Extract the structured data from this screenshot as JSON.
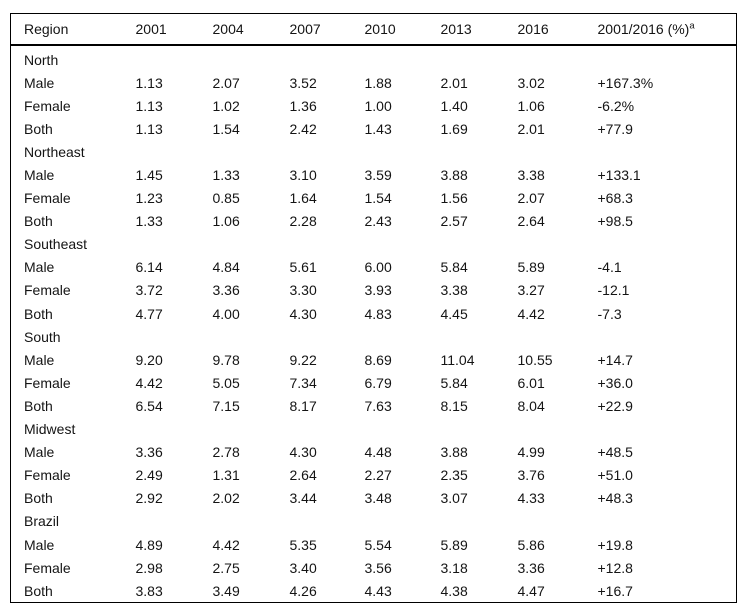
{
  "colors": {
    "background": "#ffffff",
    "border": "#000000",
    "text": "#141414"
  },
  "table": {
    "columns": [
      "Region",
      "2001",
      "2004",
      "2007",
      "2010",
      "2013",
      "2016",
      "2001/2016 (%)"
    ],
    "footnote_marker": "a",
    "rows": [
      {
        "kind": "group",
        "cells": [
          "North",
          "",
          "",
          "",
          "",
          "",
          "",
          ""
        ]
      },
      {
        "kind": "data",
        "cells": [
          "Male",
          "1.13",
          "2.07",
          "3.52",
          "1.88",
          "2.01",
          "3.02",
          "+167.3%"
        ]
      },
      {
        "kind": "data",
        "cells": [
          "Female",
          "1.13",
          "1.02",
          "1.36",
          "1.00",
          "1.40",
          "1.06",
          "-6.2%"
        ]
      },
      {
        "kind": "data",
        "cells": [
          "Both",
          "1.13",
          "1.54",
          "2.42",
          "1.43",
          "1.69",
          "2.01",
          "+77.9"
        ]
      },
      {
        "kind": "group",
        "cells": [
          "Northeast",
          "",
          "",
          "",
          "",
          "",
          "",
          ""
        ]
      },
      {
        "kind": "data",
        "cells": [
          "Male",
          "1.45",
          "1.33",
          "3.10",
          "3.59",
          "3.88",
          "3.38",
          "+133.1"
        ]
      },
      {
        "kind": "data",
        "cells": [
          "Female",
          "1.23",
          "0.85",
          "1.64",
          "1.54",
          "1.56",
          "2.07",
          "+68.3"
        ]
      },
      {
        "kind": "data",
        "cells": [
          "Both",
          "1.33",
          "1.06",
          "2.28",
          "2.43",
          "2.57",
          "2.64",
          "+98.5"
        ]
      },
      {
        "kind": "group",
        "cells": [
          "Southeast",
          "",
          "",
          "",
          "",
          "",
          "",
          ""
        ]
      },
      {
        "kind": "data",
        "cells": [
          "Male",
          "6.14",
          "4.84",
          "5.61",
          "6.00",
          "5.84",
          "5.89",
          "-4.1"
        ]
      },
      {
        "kind": "data",
        "cells": [
          "Female",
          "3.72",
          "3.36",
          "3.30",
          "3.93",
          "3.38",
          "3.27",
          "-12.1"
        ]
      },
      {
        "kind": "data",
        "cells": [
          "Both",
          "4.77",
          "4.00",
          "4.30",
          "4.83",
          "4.45",
          "4.42",
          "-7.3"
        ]
      },
      {
        "kind": "group",
        "cells": [
          "South",
          "",
          "",
          "",
          "",
          "",
          "",
          ""
        ]
      },
      {
        "kind": "data",
        "cells": [
          "Male",
          "9.20",
          "9.78",
          "9.22",
          "8.69",
          "11.04",
          "10.55",
          "+14.7"
        ]
      },
      {
        "kind": "data",
        "cells": [
          "Female",
          "4.42",
          "5.05",
          "7.34",
          "6.79",
          "5.84",
          "6.01",
          "+36.0"
        ]
      },
      {
        "kind": "data",
        "cells": [
          "Both",
          "6.54",
          "7.15",
          "8.17",
          "7.63",
          "8.15",
          "8.04",
          "+22.9"
        ]
      },
      {
        "kind": "group",
        "cells": [
          "Midwest",
          "",
          "",
          "",
          "",
          "",
          "",
          ""
        ]
      },
      {
        "kind": "data",
        "cells": [
          "Male",
          "3.36",
          "2.78",
          "4.30",
          "4.48",
          "3.88",
          "4.99",
          "+48.5"
        ]
      },
      {
        "kind": "data",
        "cells": [
          "Female",
          "2.49",
          "1.31",
          "2.64",
          "2.27",
          "2.35",
          "3.76",
          "+51.0"
        ]
      },
      {
        "kind": "data",
        "cells": [
          "Both",
          "2.92",
          "2.02",
          "3.44",
          "3.48",
          "3.07",
          "4.33",
          "+48.3"
        ]
      },
      {
        "kind": "group",
        "cells": [
          "Brazil",
          "",
          "",
          "",
          "",
          "",
          "",
          ""
        ]
      },
      {
        "kind": "data",
        "cells": [
          "Male",
          "4.89",
          "4.42",
          "5.35",
          "5.54",
          "5.89",
          "5.86",
          "+19.8"
        ]
      },
      {
        "kind": "data",
        "cells": [
          "Female",
          "2.98",
          "2.75",
          "3.40",
          "3.56",
          "3.18",
          "3.36",
          "+12.8"
        ]
      },
      {
        "kind": "data",
        "cells": [
          "Both",
          "3.83",
          "3.49",
          "4.26",
          "4.43",
          "4.38",
          "4.47",
          "+16.7"
        ]
      }
    ]
  }
}
